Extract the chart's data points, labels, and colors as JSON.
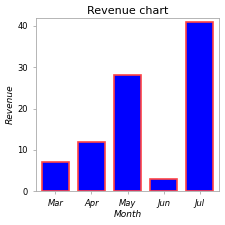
{
  "categories": [
    "Mar",
    "Apr",
    "May",
    "Jun",
    "Jul"
  ],
  "values": [
    7,
    12,
    28,
    3,
    41
  ],
  "bar_color": "#0000FF",
  "bar_edgecolor": "#FF4444",
  "bar_linewidth": 1.2,
  "title": "Revenue chart",
  "xlabel": "Month",
  "ylabel": "Revenue",
  "ylim": [
    0,
    42
  ],
  "yticks": [
    0,
    10,
    20,
    30,
    40
  ],
  "background_color": "#ffffff",
  "plot_bg_color": "#ffffff",
  "title_fontsize": 8,
  "axis_fontsize": 6.5,
  "tick_fontsize": 6,
  "bar_width": 0.75,
  "bar_spacing": 1.0
}
